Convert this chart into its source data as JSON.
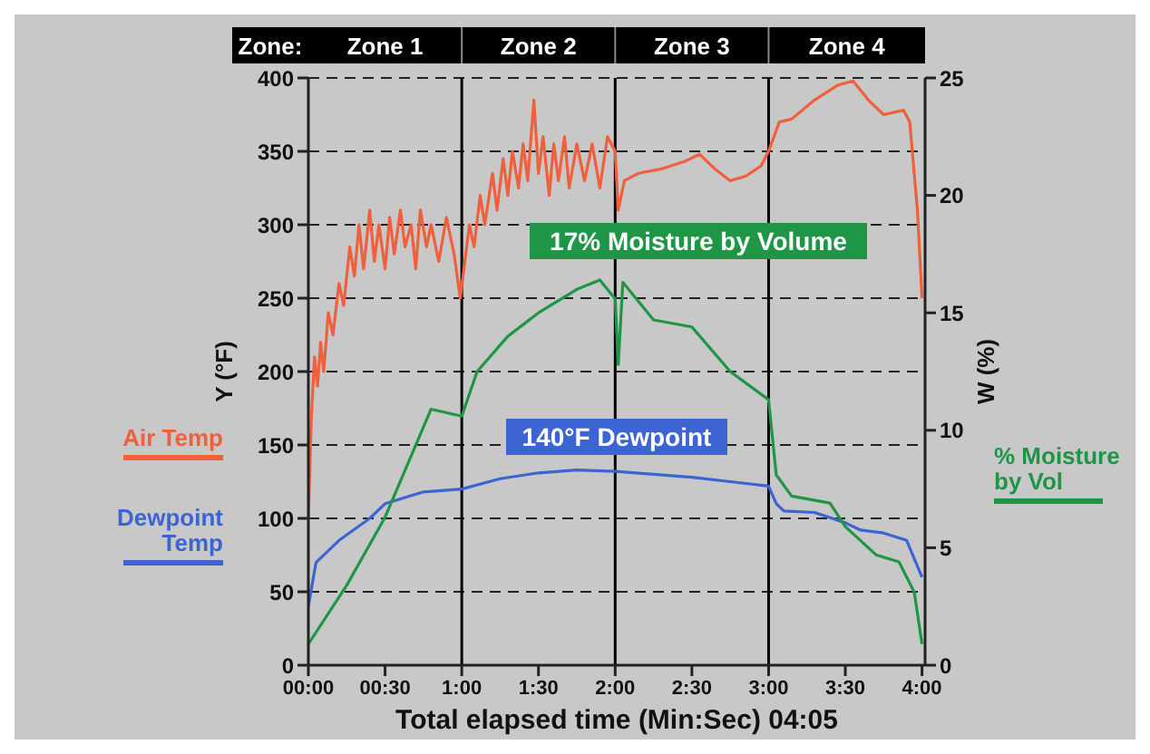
{
  "chart_data": {
    "type": "line",
    "xlabel": "Total elapsed time (Min:Sec) 04:05",
    "ylabel": "Y (°F)",
    "y2label": "W (%)",
    "annotations": [
      "17% Moisture by Volume",
      "140°F Dewpoint",
      "Zone:",
      "Zone 1",
      "Zone 2",
      "Zone 3",
      "Zone 4"
    ],
    "xlim": [
      0,
      4.02
    ],
    "xticks": [
      {
        "value": 0,
        "label": "00:00"
      },
      {
        "value": 0.5,
        "label": "00:30"
      },
      {
        "value": 1,
        "label": "1:00"
      },
      {
        "value": 1.5,
        "label": "1:30"
      },
      {
        "value": 2,
        "label": "2:00"
      },
      {
        "value": 2.5,
        "label": "2:30"
      },
      {
        "value": 3,
        "label": "3:00"
      },
      {
        "value": 3.5,
        "label": "3:30"
      },
      {
        "value": 4,
        "label": "4:00"
      }
    ],
    "ylim": [
      0,
      400
    ],
    "yticks": [
      0,
      50,
      100,
      150,
      200,
      250,
      300,
      350,
      400
    ],
    "y2lim": [
      0,
      25
    ],
    "y2ticks": [
      0,
      5,
      10,
      15,
      20,
      25
    ],
    "grid": "y",
    "legend": "left",
    "line_style": "solid",
    "ref_lines": [
      {
        "axis": "x",
        "value": 1,
        "color": "#000000"
      },
      {
        "axis": "x",
        "value": 2,
        "color": "#000000"
      },
      {
        "axis": "x",
        "value": 3,
        "color": "#000000"
      }
    ],
    "series": [
      {
        "name": "Air Temp",
        "color": "#f0603c",
        "x": [
          0,
          0.02,
          0.04,
          0.06,
          0.08,
          0.1,
          0.13,
          0.16,
          0.2,
          0.23,
          0.27,
          0.3,
          0.33,
          0.36,
          0.4,
          0.43,
          0.46,
          0.5,
          0.53,
          0.56,
          0.6,
          0.63,
          0.67,
          0.7,
          0.73,
          0.77,
          0.8,
          0.85,
          0.9,
          0.95,
          0.99,
          1.02,
          1.05,
          1.08,
          1.12,
          1.15,
          1.2,
          1.23,
          1.27,
          1.3,
          1.33,
          1.37,
          1.4,
          1.43,
          1.47,
          1.5,
          1.53,
          1.57,
          1.6,
          1.63,
          1.67,
          1.7,
          1.75,
          1.8,
          1.85,
          1.9,
          1.95,
          2,
          2.02,
          2.06,
          2.15,
          2.3,
          2.45,
          2.55,
          2.65,
          2.75,
          2.85,
          2.95,
          3,
          3.07,
          3.15,
          3.3,
          3.45,
          3.55,
          3.65,
          3.75,
          3.88,
          3.92,
          3.97,
          4
        ],
        "values": [
          100,
          170,
          210,
          190,
          220,
          200,
          240,
          225,
          260,
          245,
          285,
          265,
          300,
          270,
          310,
          275,
          300,
          270,
          305,
          280,
          310,
          285,
          300,
          270,
          310,
          285,
          300,
          275,
          305,
          280,
          250,
          275,
          300,
          285,
          320,
          300,
          335,
          310,
          345,
          320,
          350,
          325,
          355,
          330,
          385,
          335,
          360,
          320,
          355,
          330,
          360,
          325,
          355,
          330,
          355,
          325,
          360,
          350,
          310,
          330,
          335,
          338,
          343,
          348,
          338,
          330,
          333,
          340,
          350,
          370,
          372,
          385,
          395,
          398,
          385,
          375,
          378,
          370,
          310,
          250
        ]
      },
      {
        "name": "Dewpoint Temp",
        "color": "#3c64d2",
        "x": [
          0,
          0.05,
          0.2,
          0.4,
          0.5,
          0.75,
          1,
          1.25,
          1.5,
          1.75,
          2,
          2.25,
          2.5,
          2.75,
          3,
          3.05,
          3.1,
          3.3,
          3.5,
          3.6,
          3.75,
          3.9,
          4
        ],
        "values": [
          40,
          70,
          85,
          100,
          110,
          118,
          120,
          127,
          131,
          133,
          132,
          130,
          128,
          125,
          122,
          110,
          105,
          104,
          97,
          92,
          90,
          85,
          60
        ]
      },
      {
        "name": "% Moisture by Vol",
        "color": "#1e9646",
        "axis": "y2",
        "x": [
          0,
          0.25,
          0.5,
          0.8,
          1,
          1.1,
          1.3,
          1.5,
          1.75,
          1.9,
          2,
          2.02,
          2.05,
          2.25,
          2.5,
          2.75,
          3,
          3.05,
          3.15,
          3.4,
          3.5,
          3.7,
          3.85,
          3.95,
          4
        ],
        "values": [
          0.9,
          3.4,
          6.3,
          10.9,
          10.6,
          12.5,
          14,
          15,
          16,
          16.4,
          15.6,
          12.8,
          16.3,
          14.7,
          14.4,
          12.5,
          11.3,
          8.1,
          7.2,
          6.9,
          5.9,
          4.7,
          4.4,
          3.1,
          0.9
        ]
      }
    ]
  }
}
